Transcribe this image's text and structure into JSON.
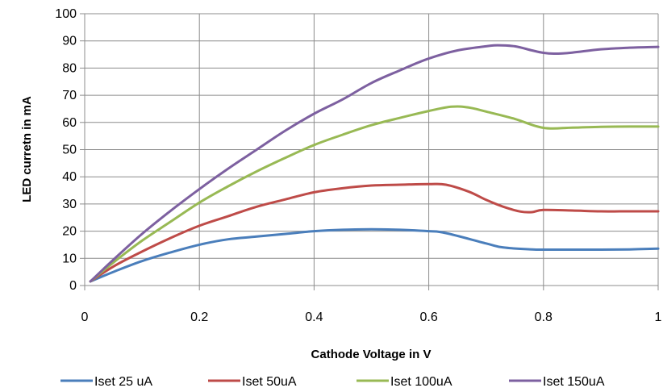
{
  "chart_data": {
    "type": "line",
    "title": "",
    "xlabel": "Cathode Voltage  in V",
    "ylabel": "LED curretn in mA",
    "xlim": [
      0,
      1
    ],
    "ylim": [
      0,
      100
    ],
    "x_ticks": [
      0,
      0.2,
      0.4,
      0.6,
      0.8,
      1
    ],
    "x_tick_labels": [
      "0",
      "0.2",
      "0.4",
      "0.6",
      "0.8",
      "1"
    ],
    "y_ticks": [
      0,
      10,
      20,
      30,
      40,
      50,
      60,
      70,
      80,
      90,
      100
    ],
    "y_tick_labels": [
      "0",
      "10",
      "20",
      "30",
      "40",
      "50",
      "60",
      "70",
      "80",
      "90",
      "100"
    ],
    "grid": true,
    "legend_position": "bottom",
    "series": [
      {
        "name": "Iset 25 uA",
        "color": "#4a7ebb",
        "x": [
          0.01,
          0.05,
          0.1,
          0.15,
          0.2,
          0.25,
          0.3,
          0.35,
          0.4,
          0.45,
          0.5,
          0.55,
          0.6,
          0.63,
          0.7,
          0.73,
          0.78,
          0.8,
          0.85,
          0.9,
          0.95,
          1.0
        ],
        "y": [
          1.5,
          5,
          9,
          12.2,
          15,
          17,
          18,
          19,
          20,
          20.5,
          20.7,
          20.5,
          20,
          19.3,
          15.5,
          14,
          13.3,
          13.2,
          13.2,
          13.2,
          13.3,
          13.6
        ]
      },
      {
        "name": "Iset 50uA",
        "color": "#be4b48",
        "x": [
          0.01,
          0.05,
          0.1,
          0.15,
          0.2,
          0.25,
          0.3,
          0.35,
          0.4,
          0.45,
          0.5,
          0.55,
          0.6,
          0.63,
          0.67,
          0.7,
          0.73,
          0.76,
          0.78,
          0.8,
          0.85,
          0.9,
          0.95,
          1.0
        ],
        "y": [
          1.5,
          7,
          12.5,
          17.5,
          22,
          25.5,
          29,
          31.7,
          34.3,
          35.8,
          36.8,
          37.1,
          37.3,
          37.1,
          34.5,
          31.5,
          29,
          27.2,
          27,
          27.8,
          27.6,
          27.3,
          27.3,
          27.3
        ]
      },
      {
        "name": "Iset 100uA",
        "color": "#98b954",
        "x": [
          0.01,
          0.05,
          0.1,
          0.15,
          0.2,
          0.25,
          0.3,
          0.35,
          0.4,
          0.45,
          0.5,
          0.55,
          0.6,
          0.64,
          0.67,
          0.7,
          0.75,
          0.8,
          0.85,
          0.9,
          0.95,
          1.0
        ],
        "y": [
          1.5,
          8.5,
          16.5,
          23.5,
          30.5,
          36.5,
          42,
          47,
          51.7,
          55.5,
          59,
          61.7,
          64.2,
          65.8,
          65.5,
          64,
          61.3,
          58,
          58.1,
          58.4,
          58.5,
          58.5
        ]
      },
      {
        "name": "Iset 150uA",
        "color": "#7d60a0",
        "x": [
          0.01,
          0.05,
          0.1,
          0.15,
          0.2,
          0.25,
          0.3,
          0.35,
          0.4,
          0.45,
          0.5,
          0.55,
          0.6,
          0.65,
          0.7,
          0.72,
          0.75,
          0.78,
          0.8,
          0.82,
          0.85,
          0.9,
          0.95,
          1.0
        ],
        "y": [
          1.5,
          9.5,
          19,
          27.5,
          35.5,
          43,
          50,
          57,
          63.2,
          68.5,
          74.5,
          79.2,
          83.5,
          86.5,
          88,
          88.4,
          88,
          86.5,
          85.6,
          85.3,
          85.7,
          86.9,
          87.5,
          87.8
        ]
      }
    ]
  }
}
